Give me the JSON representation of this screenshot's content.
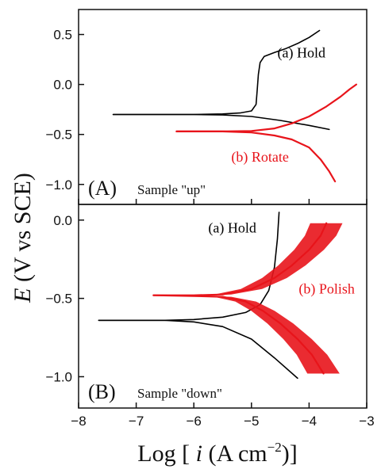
{
  "chart_data": {
    "type": "line",
    "shared_x_axis": {
      "label_prefix": "Log [ ",
      "label_var": "i",
      "label_unit": " (A cm",
      "label_exp": "−2",
      "label_suffix": ")]",
      "xlim": [
        -8,
        -3
      ],
      "ticks": [
        -8,
        -7,
        -6,
        -5,
        -4,
        -3
      ],
      "tick_labels": [
        "−8",
        "−7",
        "−6",
        "−5",
        "−4",
        "−3"
      ]
    },
    "shared_y_label": {
      "var": "E",
      "rest": " (V vs SCE)"
    },
    "colors": {
      "hold": "#000000",
      "red": "#e8141b",
      "axis": "#111111"
    },
    "panels": [
      {
        "tag": "(A)",
        "subtitle": "Sample \"up\"",
        "ylim": [
          -1.2,
          0.75
        ],
        "yticks": [
          0.5,
          0.0,
          -0.5,
          -1.0
        ],
        "ytick_labels": [
          "0.5",
          "0.0",
          "−0.5",
          "−1.0"
        ],
        "series": [
          {
            "name": "(a) Hold",
            "color": "#000000",
            "anodic": [
              [
                -7.4,
                -0.3
              ],
              [
                -6.5,
                -0.3
              ],
              [
                -6.0,
                -0.3
              ],
              [
                -5.5,
                -0.295
              ],
              [
                -5.2,
                -0.285
              ],
              [
                -5.0,
                -0.265
              ],
              [
                -4.92,
                -0.2
              ],
              [
                -4.9,
                -0.05
              ],
              [
                -4.88,
                0.1
              ],
              [
                -4.85,
                0.22
              ],
              [
                -4.78,
                0.28
              ],
              [
                -4.6,
                0.32
              ],
              [
                -4.4,
                0.36
              ],
              [
                -4.2,
                0.41
              ],
              [
                -4.0,
                0.47
              ],
              [
                -3.82,
                0.54
              ]
            ],
            "cathodic": [
              [
                -7.4,
                -0.3
              ],
              [
                -6.5,
                -0.3
              ],
              [
                -6.0,
                -0.3
              ],
              [
                -5.5,
                -0.305
              ],
              [
                -5.0,
                -0.32
              ],
              [
                -4.5,
                -0.36
              ],
              [
                -4.0,
                -0.41
              ],
              [
                -3.65,
                -0.45
              ]
            ]
          },
          {
            "name": "(b) Rotate",
            "color": "#e8141b",
            "anodic": [
              [
                -6.3,
                -0.47
              ],
              [
                -5.5,
                -0.47
              ],
              [
                -5.0,
                -0.465
              ],
              [
                -4.6,
                -0.44
              ],
              [
                -4.3,
                -0.39
              ],
              [
                -4.0,
                -0.32
              ],
              [
                -3.7,
                -0.22
              ],
              [
                -3.45,
                -0.12
              ],
              [
                -3.3,
                -0.05
              ],
              [
                -3.18,
                0.0
              ]
            ],
            "cathodic": [
              [
                -6.3,
                -0.47
              ],
              [
                -5.5,
                -0.47
              ],
              [
                -5.0,
                -0.48
              ],
              [
                -4.6,
                -0.51
              ],
              [
                -4.3,
                -0.55
              ],
              [
                -4.0,
                -0.63
              ],
              [
                -3.8,
                -0.75
              ],
              [
                -3.65,
                -0.87
              ],
              [
                -3.55,
                -0.97
              ]
            ]
          }
        ],
        "annotations": [
          {
            "text": "(a) Hold",
            "x": -4.55,
            "y": 0.27,
            "color": "#000000"
          },
          {
            "text": "(b) Rotate",
            "x": -5.35,
            "y": -0.77,
            "color": "#e8141b"
          }
        ]
      },
      {
        "tag": "(B)",
        "subtitle": "Sample \"down\"",
        "ylim": [
          -1.2,
          0.1
        ],
        "yticks": [
          0.0,
          -0.5,
          -1.0
        ],
        "ytick_labels": [
          "0.0",
          "−0.5",
          "−1.0"
        ],
        "series": [
          {
            "name": "(a) Hold",
            "color": "#000000",
            "anodic": [
              [
                -7.65,
                -0.64
              ],
              [
                -7.0,
                -0.64
              ],
              [
                -6.5,
                -0.64
              ],
              [
                -6.0,
                -0.635
              ],
              [
                -5.5,
                -0.62
              ],
              [
                -5.1,
                -0.59
              ],
              [
                -4.85,
                -0.54
              ],
              [
                -4.7,
                -0.45
              ],
              [
                -4.6,
                -0.3
              ],
              [
                -4.55,
                -0.12
              ],
              [
                -4.52,
                0.05
              ]
            ],
            "cathodic": [
              [
                -7.65,
                -0.64
              ],
              [
                -6.5,
                -0.64
              ],
              [
                -6.0,
                -0.65
              ],
              [
                -5.5,
                -0.68
              ],
              [
                -5.0,
                -0.76
              ],
              [
                -4.6,
                -0.88
              ],
              [
                -4.2,
                -1.01
              ]
            ]
          },
          {
            "name": "(b) Polish",
            "color": "#e8141b",
            "anodic": [
              [
                -6.7,
                -0.48
              ],
              [
                -6.0,
                -0.48
              ],
              [
                -5.5,
                -0.475
              ],
              [
                -5.0,
                -0.44
              ],
              [
                -4.6,
                -0.37
              ],
              [
                -4.3,
                -0.29
              ],
              [
                -4.0,
                -0.19
              ],
              [
                -3.8,
                -0.1
              ],
              [
                -3.7,
                -0.02
              ]
            ],
            "cathodic": [
              [
                -6.7,
                -0.48
              ],
              [
                -6.0,
                -0.485
              ],
              [
                -5.5,
                -0.49
              ],
              [
                -5.1,
                -0.52
              ],
              [
                -4.8,
                -0.58
              ],
              [
                -4.5,
                -0.66
              ],
              [
                -4.2,
                -0.76
              ],
              [
                -3.95,
                -0.86
              ],
              [
                -3.75,
                -0.98
              ]
            ]
          }
        ],
        "annotations": [
          {
            "text": "(a) Hold",
            "x": -5.75,
            "y": -0.08,
            "color": "#000000"
          },
          {
            "text": "(b) Polish",
            "x": -4.18,
            "y": -0.47,
            "color": "#e8141b"
          }
        ]
      }
    ]
  }
}
